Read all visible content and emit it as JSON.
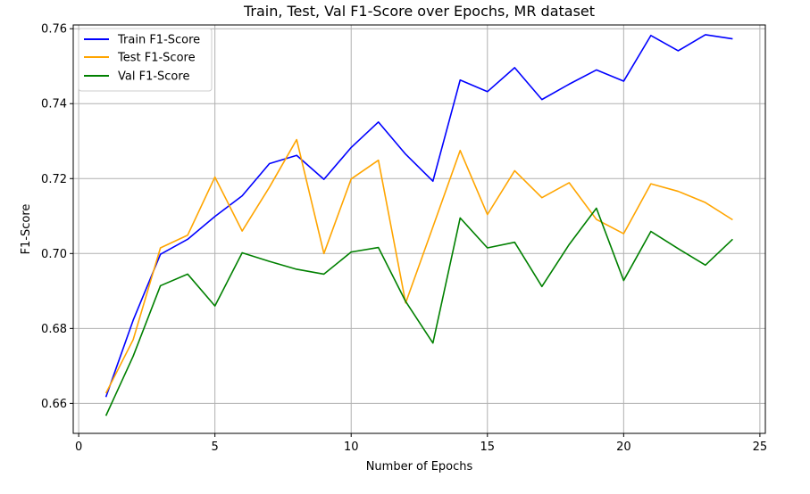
{
  "chart_data": {
    "type": "line",
    "title": "Train, Test, Val F1-Score over Epochs, MR dataset",
    "xlabel": "Number of Epochs",
    "ylabel": "F1-Score",
    "xlim": [
      -0.2,
      25.2
    ],
    "ylim": [
      0.652,
      0.761
    ],
    "xticks": [
      0,
      5,
      10,
      15,
      20,
      25
    ],
    "xtick_labels": [
      "0",
      "5",
      "10",
      "15",
      "20",
      "25"
    ],
    "yticks": [
      0.66,
      0.68,
      0.7,
      0.72,
      0.74,
      0.76
    ],
    "ytick_labels": [
      "0.66",
      "0.68",
      "0.70",
      "0.72",
      "0.74",
      "0.76"
    ],
    "grid": true,
    "legend_position": "top-left",
    "x": [
      1,
      2,
      3,
      4,
      5,
      6,
      7,
      8,
      9,
      10,
      11,
      12,
      13,
      14,
      15,
      16,
      17,
      18,
      19,
      20,
      21,
      22,
      23,
      24
    ],
    "series": [
      {
        "name": "Train F1-Score",
        "color": "#0000ff",
        "values": [
          0.6617,
          0.6822,
          0.6998,
          0.7038,
          0.7099,
          0.7154,
          0.724,
          0.7262,
          0.7198,
          0.7283,
          0.7351,
          0.7265,
          0.7193,
          0.7463,
          0.7432,
          0.7496,
          0.7411,
          0.7452,
          0.749,
          0.746,
          0.7582,
          0.7541,
          0.7584,
          0.7573
        ]
      },
      {
        "name": "Test F1-Score",
        "color": "#ffa500",
        "values": [
          0.6627,
          0.677,
          0.7015,
          0.7049,
          0.7204,
          0.706,
          0.7177,
          0.7304,
          0.7,
          0.7199,
          0.7249,
          0.6868,
          0.7071,
          0.7275,
          0.7104,
          0.7221,
          0.7149,
          0.7189,
          0.7091,
          0.7053,
          0.7186,
          0.7166,
          0.7136,
          0.709
        ]
      },
      {
        "name": "Val F1-Score",
        "color": "#008000",
        "values": [
          0.6567,
          0.6726,
          0.6914,
          0.6945,
          0.686,
          0.7002,
          0.6979,
          0.6958,
          0.6945,
          0.7004,
          0.7016,
          0.6872,
          0.6761,
          0.7095,
          0.7015,
          0.703,
          0.6912,
          0.7024,
          0.7121,
          0.6928,
          0.7059,
          0.7013,
          0.6969,
          0.7038
        ]
      }
    ]
  }
}
